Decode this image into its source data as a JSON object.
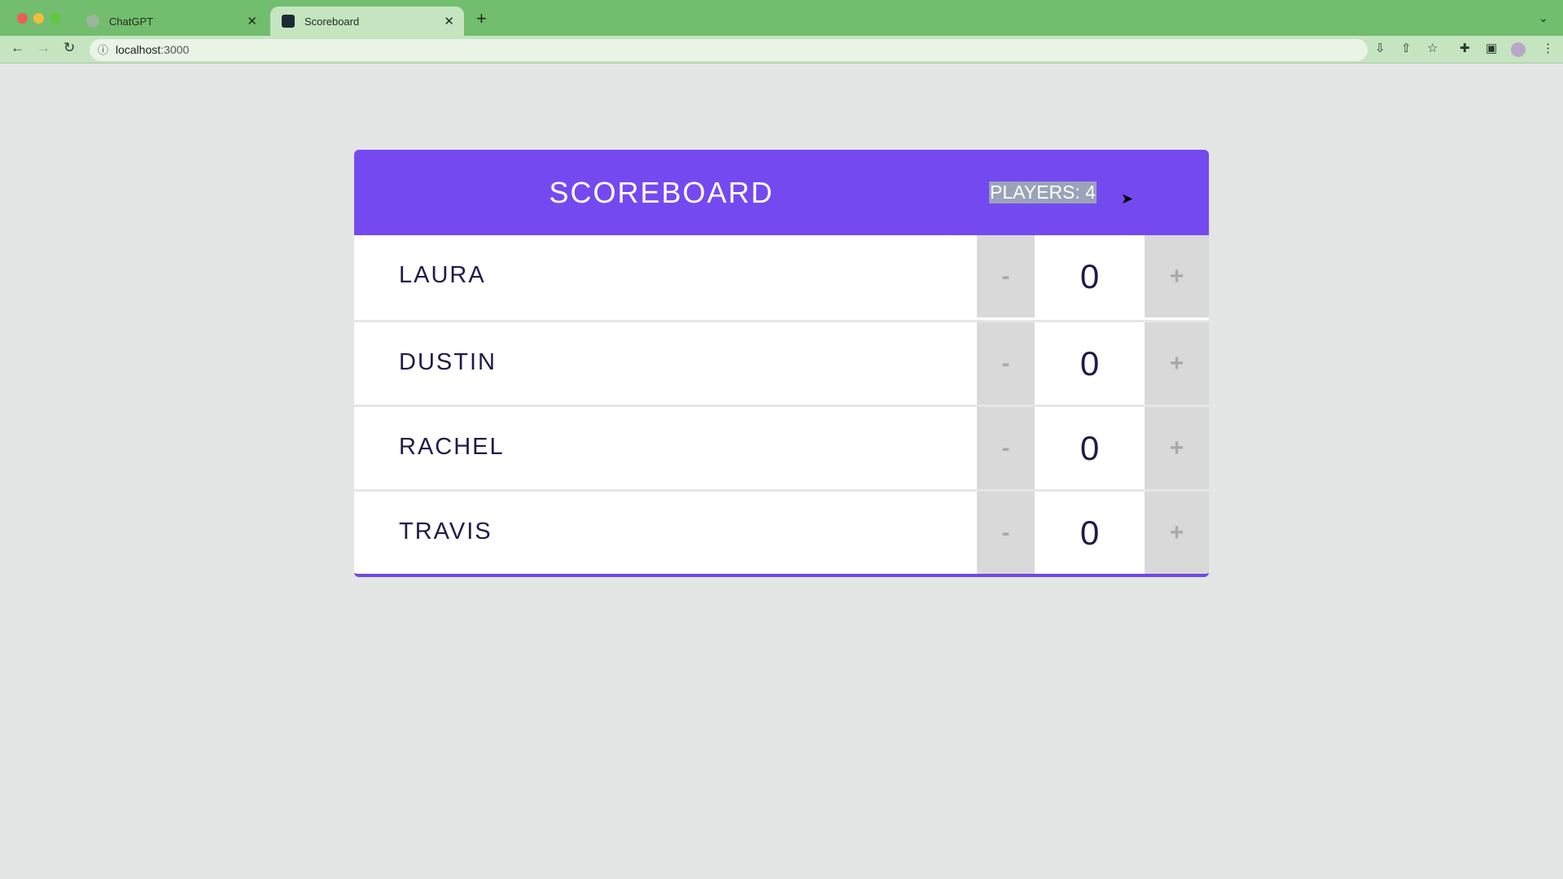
{
  "browser": {
    "tabs": [
      {
        "title": "ChatGPT",
        "active": false
      },
      {
        "title": "Scoreboard",
        "active": true
      }
    ],
    "url_host": "localhost",
    "url_port": ":3000"
  },
  "scoreboard": {
    "title": "SCOREBOARD",
    "players_label": "PLAYERS: 4",
    "accent_color": "#7549f0",
    "decrement_label": "-",
    "increment_label": "+",
    "players": [
      {
        "name": "LAURA",
        "score": "0"
      },
      {
        "name": "DUSTIN",
        "score": "0"
      },
      {
        "name": "RACHEL",
        "score": "0"
      },
      {
        "name": "TRAVIS",
        "score": "0"
      }
    ]
  }
}
